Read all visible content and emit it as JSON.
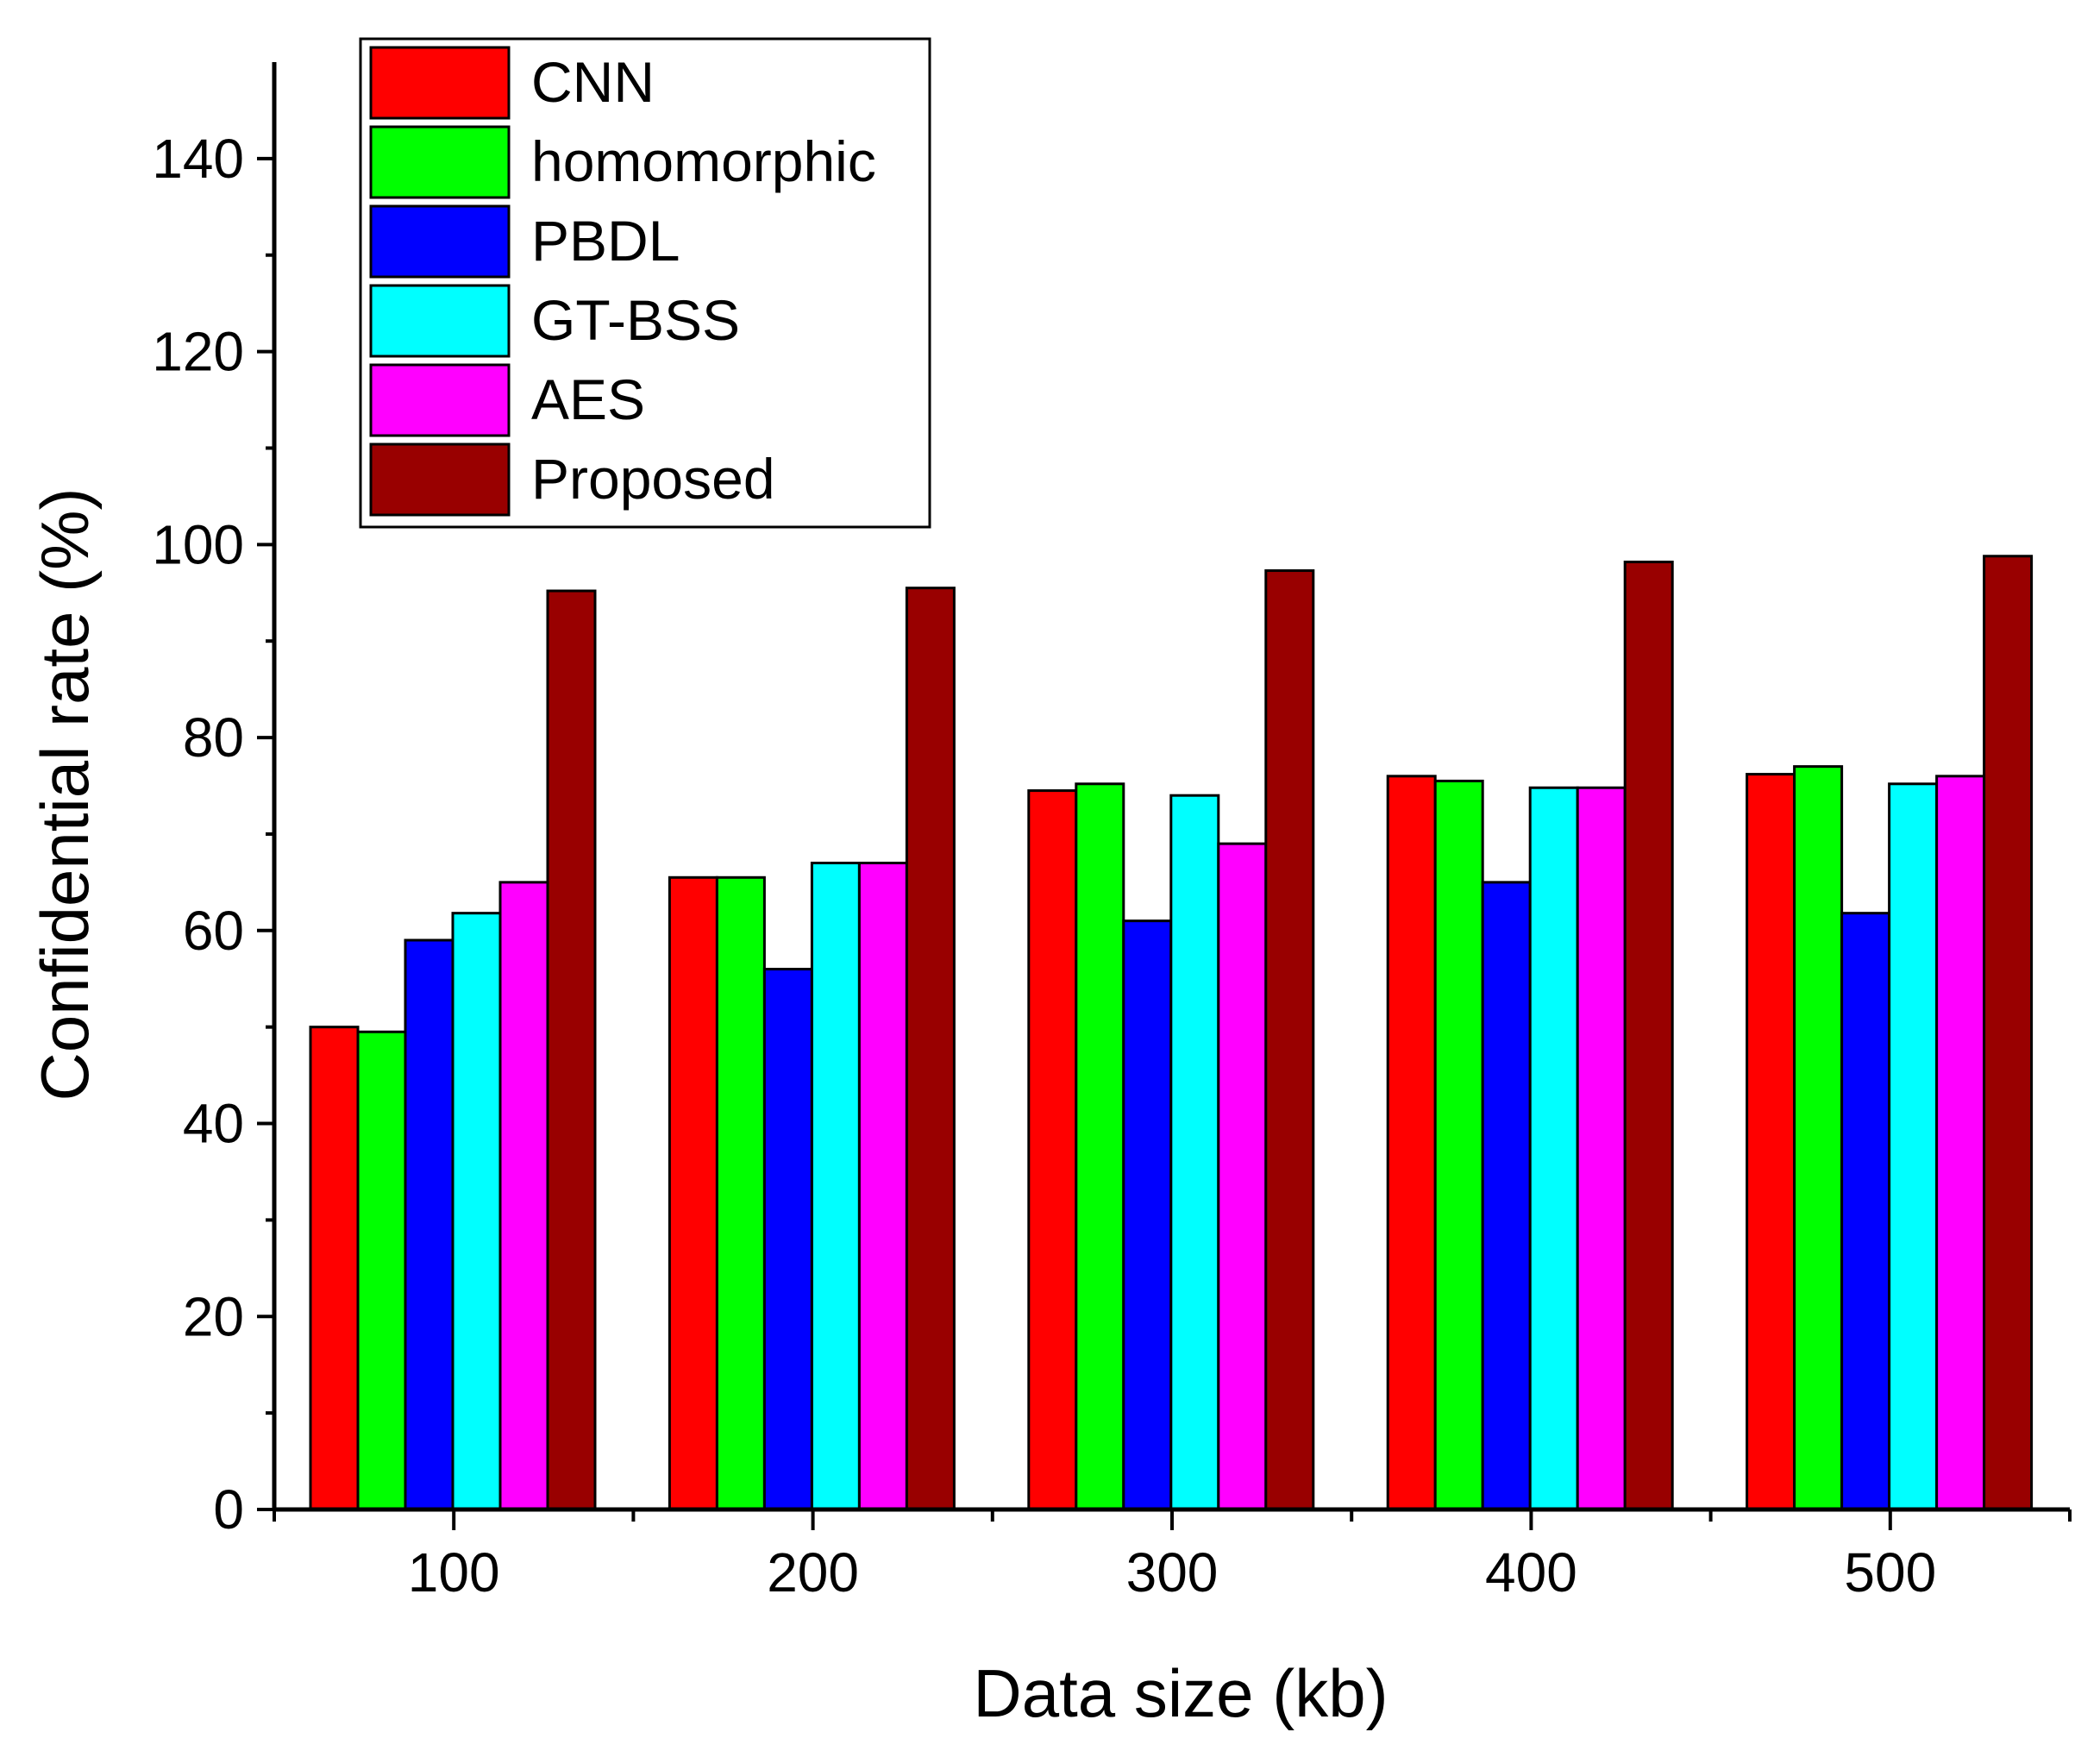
{
  "chart_data": {
    "type": "bar",
    "title": "",
    "xlabel": "Data size (kb)",
    "ylabel": "Confidential rate (%)",
    "categories": [
      "100",
      "200",
      "300",
      "400",
      "500"
    ],
    "ylim": [
      0,
      150
    ],
    "yticks": [
      0,
      20,
      40,
      60,
      80,
      100,
      120,
      140
    ],
    "legend_position": "top-left",
    "grid": false,
    "series": [
      {
        "name": "CNN",
        "color": "#ff0000",
        "values": [
          50,
          65.5,
          74.5,
          76,
          76.2
        ]
      },
      {
        "name": "homomorphic",
        "color": "#00ff00",
        "values": [
          49.5,
          65.5,
          75.2,
          75.5,
          77
        ]
      },
      {
        "name": "PBDL",
        "color": "#0000ff",
        "values": [
          59,
          56,
          61,
          65,
          61.8
        ]
      },
      {
        "name": "GT-BSS",
        "color": "#00ffff",
        "values": [
          61.8,
          67,
          74,
          74.8,
          75.2
        ]
      },
      {
        "name": "AES",
        "color": "#ff00ff",
        "values": [
          65,
          67,
          69,
          74.8,
          76
        ]
      },
      {
        "name": "Proposed",
        "color": "#990000",
        "values": [
          95.2,
          95.5,
          97.3,
          98.2,
          98.8
        ]
      }
    ]
  }
}
